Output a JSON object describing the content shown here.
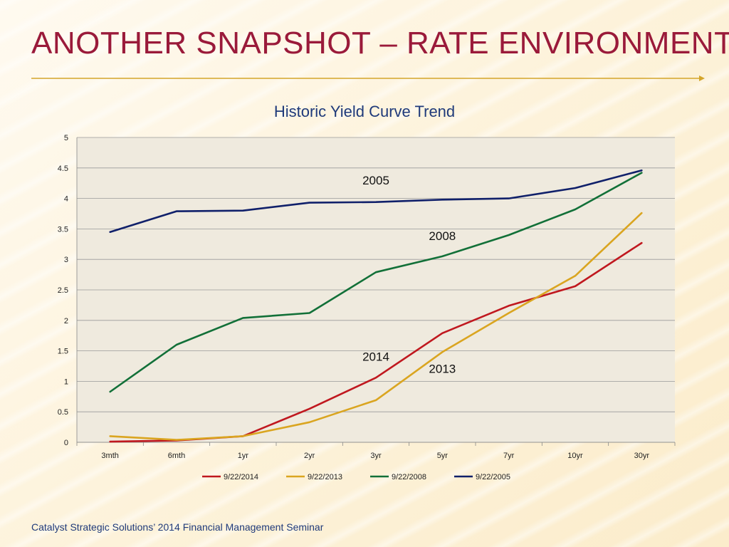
{
  "slide": {
    "title": "ANOTHER SNAPSHOT – RATE ENVIRONMENT",
    "footer": "Catalyst Strategic Solutions’ 2014 Financial Management Seminar"
  },
  "colors": {
    "title": "#9a1a3a",
    "rule": "#d4a52a",
    "plot_bg": "#efeade",
    "grid": "#9a9a9a",
    "chart_title": "#1f3a7a"
  },
  "chart_data": {
    "type": "line",
    "title": "Historic Yield Curve Trend",
    "xlabel": "",
    "ylabel": "",
    "categories": [
      "3mth",
      "6mth",
      "1yr",
      "2yr",
      "3yr",
      "5yr",
      "7yr",
      "10yr",
      "30yr"
    ],
    "ylim": [
      0,
      5
    ],
    "yticks": [
      0,
      0.5,
      1,
      1.5,
      2,
      2.5,
      3,
      3.5,
      4,
      4.5,
      5
    ],
    "ytick_labels": [
      "0",
      "0.5",
      "1",
      "1.5",
      "2",
      "2.5",
      "3",
      "3.5",
      "4",
      "4.5",
      "5"
    ],
    "grid": true,
    "legend_position": "bottom",
    "series": [
      {
        "name": "9/22/2014",
        "color": "#c0181f",
        "values": [
          0.01,
          0.03,
          0.1,
          0.55,
          1.06,
          1.79,
          2.24,
          2.56,
          3.27
        ]
      },
      {
        "name": "9/22/2013",
        "color": "#daa520",
        "values": [
          0.1,
          0.04,
          0.1,
          0.33,
          0.69,
          1.48,
          2.12,
          2.73,
          3.76
        ]
      },
      {
        "name": "9/22/2008",
        "color": "#127038",
        "values": [
          0.83,
          1.6,
          2.04,
          2.12,
          2.79,
          3.05,
          3.4,
          3.82,
          4.42
        ]
      },
      {
        "name": "9/22/2005",
        "color": "#10206a",
        "values": [
          3.45,
          3.79,
          3.8,
          3.93,
          3.94,
          3.98,
          4.0,
          4.17,
          4.46
        ]
      }
    ],
    "annotations": [
      {
        "text": "2005",
        "x": "3yr",
        "y": 4.23
      },
      {
        "text": "2008",
        "x": "5yr",
        "y": 3.32
      },
      {
        "text": "2014",
        "x": "3yr",
        "y": 1.34
      },
      {
        "text": "2013",
        "x": "5yr",
        "y": 1.14
      }
    ]
  }
}
